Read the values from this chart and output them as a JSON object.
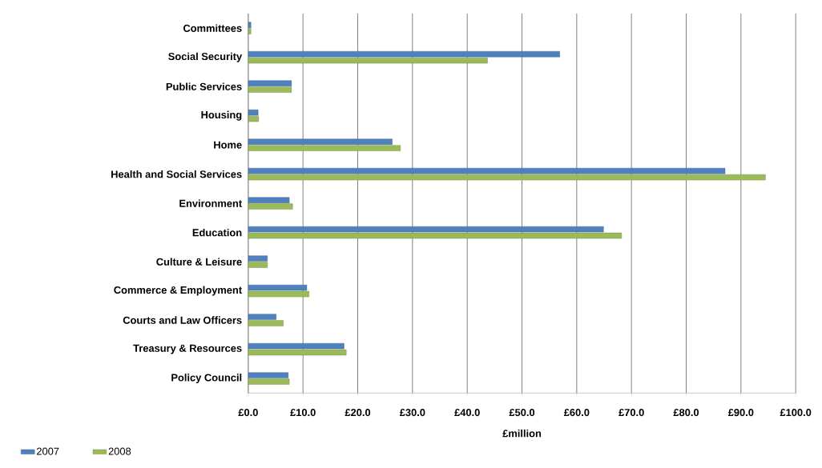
{
  "chart_data": {
    "type": "bar",
    "orientation": "horizontal",
    "xlabel": "£million",
    "categories": [
      "Committees",
      "Social Security",
      "Public Services",
      "Housing",
      "Home",
      "Health and Social Services",
      "Environment",
      "Education",
      "Culture & Leisure",
      "Commerce & Employment",
      "Courts and Law Officers",
      "Treasury & Resources",
      "Policy Council"
    ],
    "series": [
      {
        "name": "2007",
        "color": "#4f81bd",
        "values": [
          0.5,
          56.9,
          7.9,
          1.8,
          26.3,
          87.1,
          7.5,
          64.9,
          3.5,
          10.7,
          5.1,
          17.5,
          7.3
        ]
      },
      {
        "name": "2008",
        "color": "#9bbb59",
        "values": [
          0.5,
          43.7,
          7.9,
          1.9,
          27.8,
          94.5,
          8.1,
          68.2,
          3.5,
          11.1,
          6.4,
          17.9,
          7.5
        ]
      }
    ],
    "xlim": [
      0,
      100
    ],
    "xticks": [
      {
        "value": 0,
        "label": "£0.0"
      },
      {
        "value": 10,
        "label": "£10.0"
      },
      {
        "value": 20,
        "label": "£20.0"
      },
      {
        "value": 30,
        "label": "£30.0"
      },
      {
        "value": 40,
        "label": "£40.0"
      },
      {
        "value": 50,
        "label": "£50.0"
      },
      {
        "value": 60,
        "label": "£60.0"
      },
      {
        "value": 70,
        "label": "£70.0"
      },
      {
        "value": 80,
        "label": "£80.0"
      },
      {
        "value": 90,
        "label": "£90.0"
      },
      {
        "value": 100,
        "label": "£100.0"
      }
    ],
    "grid": "x",
    "legend": "bottom left"
  }
}
